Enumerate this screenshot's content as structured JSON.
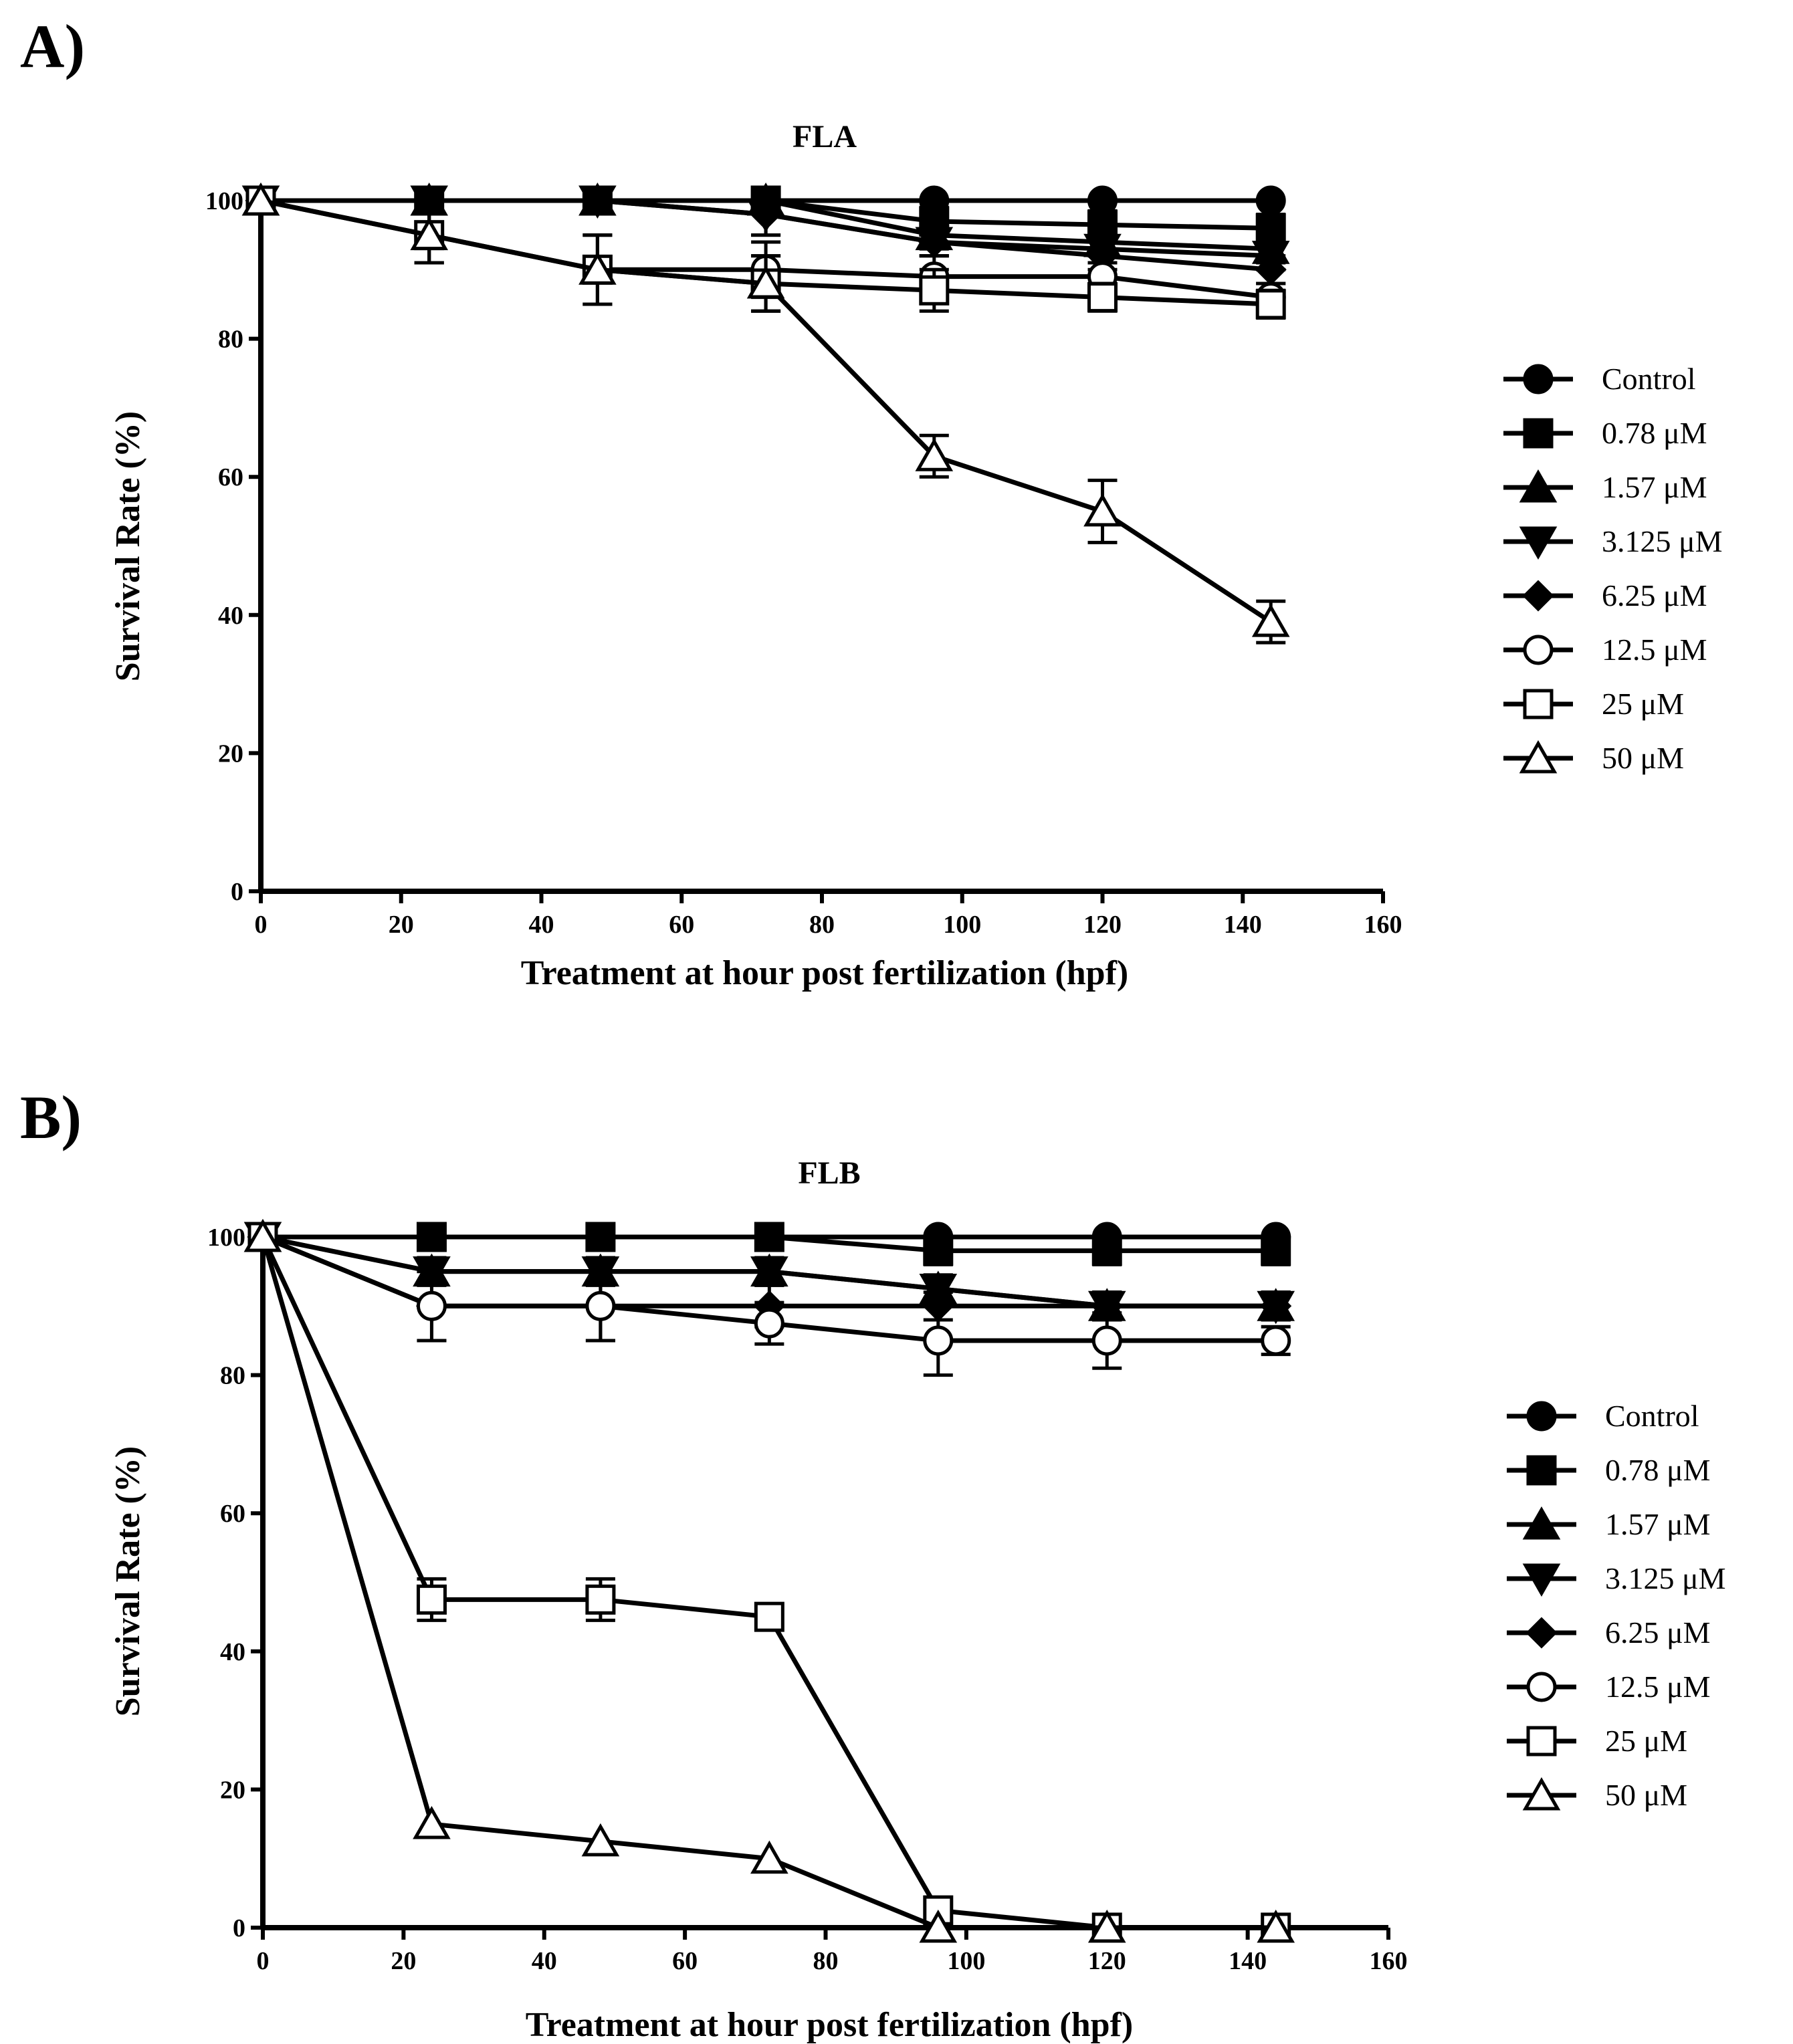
{
  "panels": [
    {
      "label": "A)"
    },
    {
      "label": "B)"
    }
  ],
  "chart_data": [
    {
      "type": "line",
      "title": "FLA",
      "xlabel": "Treatment at hour post fertilization (hpf)",
      "ylabel": "Survival Rate (%)",
      "xlim": [
        0,
        160
      ],
      "ylim": [
        0,
        100
      ],
      "xticks": [
        0,
        20,
        40,
        60,
        80,
        100,
        120,
        140,
        160
      ],
      "yticks": [
        0,
        20,
        40,
        60,
        80,
        100
      ],
      "x": [
        0,
        24,
        48,
        72,
        96,
        120,
        144
      ],
      "series": [
        {
          "name": "Control",
          "marker": "circle-filled",
          "values": [
            100,
            100,
            100,
            100,
            100,
            100,
            100
          ],
          "err": [
            0,
            0,
            0,
            0,
            0,
            0,
            0
          ]
        },
        {
          "name": "0.78 μM",
          "marker": "square-filled",
          "values": [
            100,
            100,
            100,
            100,
            97,
            96.5,
            96
          ],
          "err": [
            0,
            0,
            0,
            0,
            2,
            2,
            2
          ]
        },
        {
          "name": "1.57 μM",
          "marker": "triangle-up-filled",
          "values": [
            100,
            100,
            100,
            100,
            95,
            94,
            93
          ],
          "err": [
            0,
            0,
            0,
            0,
            2,
            2,
            2
          ]
        },
        {
          "name": "3.125 μM",
          "marker": "triangle-down-filled",
          "values": [
            100,
            100,
            100,
            98,
            94,
            93,
            92
          ],
          "err": [
            0,
            0,
            0,
            3,
            2,
            2,
            2
          ]
        },
        {
          "name": "6.25 μM",
          "marker": "diamond-filled",
          "values": [
            100,
            100,
            100,
            98,
            94,
            92,
            90
          ],
          "err": [
            0,
            0,
            0,
            3,
            2,
            2,
            2
          ]
        },
        {
          "name": "12.5 μM",
          "marker": "circle-open",
          "values": [
            100,
            95,
            90,
            90,
            89,
            89,
            86
          ],
          "err": [
            0,
            4,
            5,
            4,
            3,
            2,
            2
          ]
        },
        {
          "name": "25 μM",
          "marker": "square-open",
          "values": [
            100,
            95,
            90,
            88,
            87,
            86,
            85
          ],
          "err": [
            0,
            4,
            5,
            4,
            3,
            2,
            2
          ]
        },
        {
          "name": "50 μM",
          "marker": "triangle-up-open",
          "values": [
            100,
            95,
            90,
            88,
            63,
            55,
            39
          ],
          "err": [
            0,
            4,
            5,
            4,
            3,
            4.5,
            3
          ]
        }
      ]
    },
    {
      "type": "line",
      "title": "FLB",
      "xlabel": "Treatment at hour post fertilization (hpf)",
      "ylabel": "Survival Rate (%)",
      "xlim": [
        0,
        160
      ],
      "ylim": [
        0,
        100
      ],
      "xticks": [
        0,
        20,
        40,
        60,
        80,
        100,
        120,
        140,
        160
      ],
      "yticks": [
        0,
        20,
        40,
        60,
        80,
        100
      ],
      "x": [
        0,
        24,
        48,
        72,
        96,
        120,
        144
      ],
      "series": [
        {
          "name": "Control",
          "marker": "circle-filled",
          "values": [
            100,
            100,
            100,
            100,
            100,
            100,
            100
          ],
          "err": [
            0,
            0,
            0,
            0,
            0,
            0,
            0
          ]
        },
        {
          "name": "0.78 μM",
          "marker": "square-filled",
          "values": [
            100,
            100,
            100,
            100,
            98,
            98,
            98
          ],
          "err": [
            0,
            0,
            0,
            0,
            2,
            2,
            2
          ]
        },
        {
          "name": "1.57 μM",
          "marker": "triangle-up-filled",
          "values": [
            100,
            95,
            95,
            95,
            92.5,
            90,
            90
          ],
          "err": [
            0,
            2,
            2,
            2,
            2,
            2,
            2
          ]
        },
        {
          "name": "3.125 μM",
          "marker": "triangle-down-filled",
          "values": [
            100,
            95,
            95,
            95,
            92.5,
            90,
            90
          ],
          "err": [
            0,
            2,
            2,
            2,
            2,
            2,
            2
          ]
        },
        {
          "name": "6.25 μM",
          "marker": "diamond-filled",
          "values": [
            100,
            90,
            90,
            90,
            90,
            90,
            90
          ],
          "err": [
            0,
            5,
            5,
            3,
            2,
            2,
            2
          ]
        },
        {
          "name": "12.5 μM",
          "marker": "circle-open",
          "values": [
            100,
            90,
            90,
            87.5,
            85,
            85,
            85
          ],
          "err": [
            0,
            5,
            5,
            3,
            5,
            4,
            2
          ]
        },
        {
          "name": "25 μM",
          "marker": "square-open",
          "values": [
            100,
            47.5,
            47.5,
            45,
            2.5,
            0,
            0
          ],
          "err": [
            0,
            3,
            3,
            0,
            0,
            0,
            0
          ]
        },
        {
          "name": "50 μM",
          "marker": "triangle-up-open",
          "values": [
            100,
            15,
            12.5,
            10,
            0,
            0,
            0
          ],
          "err": [
            0,
            0,
            0,
            0,
            0,
            0,
            0
          ]
        }
      ]
    }
  ]
}
